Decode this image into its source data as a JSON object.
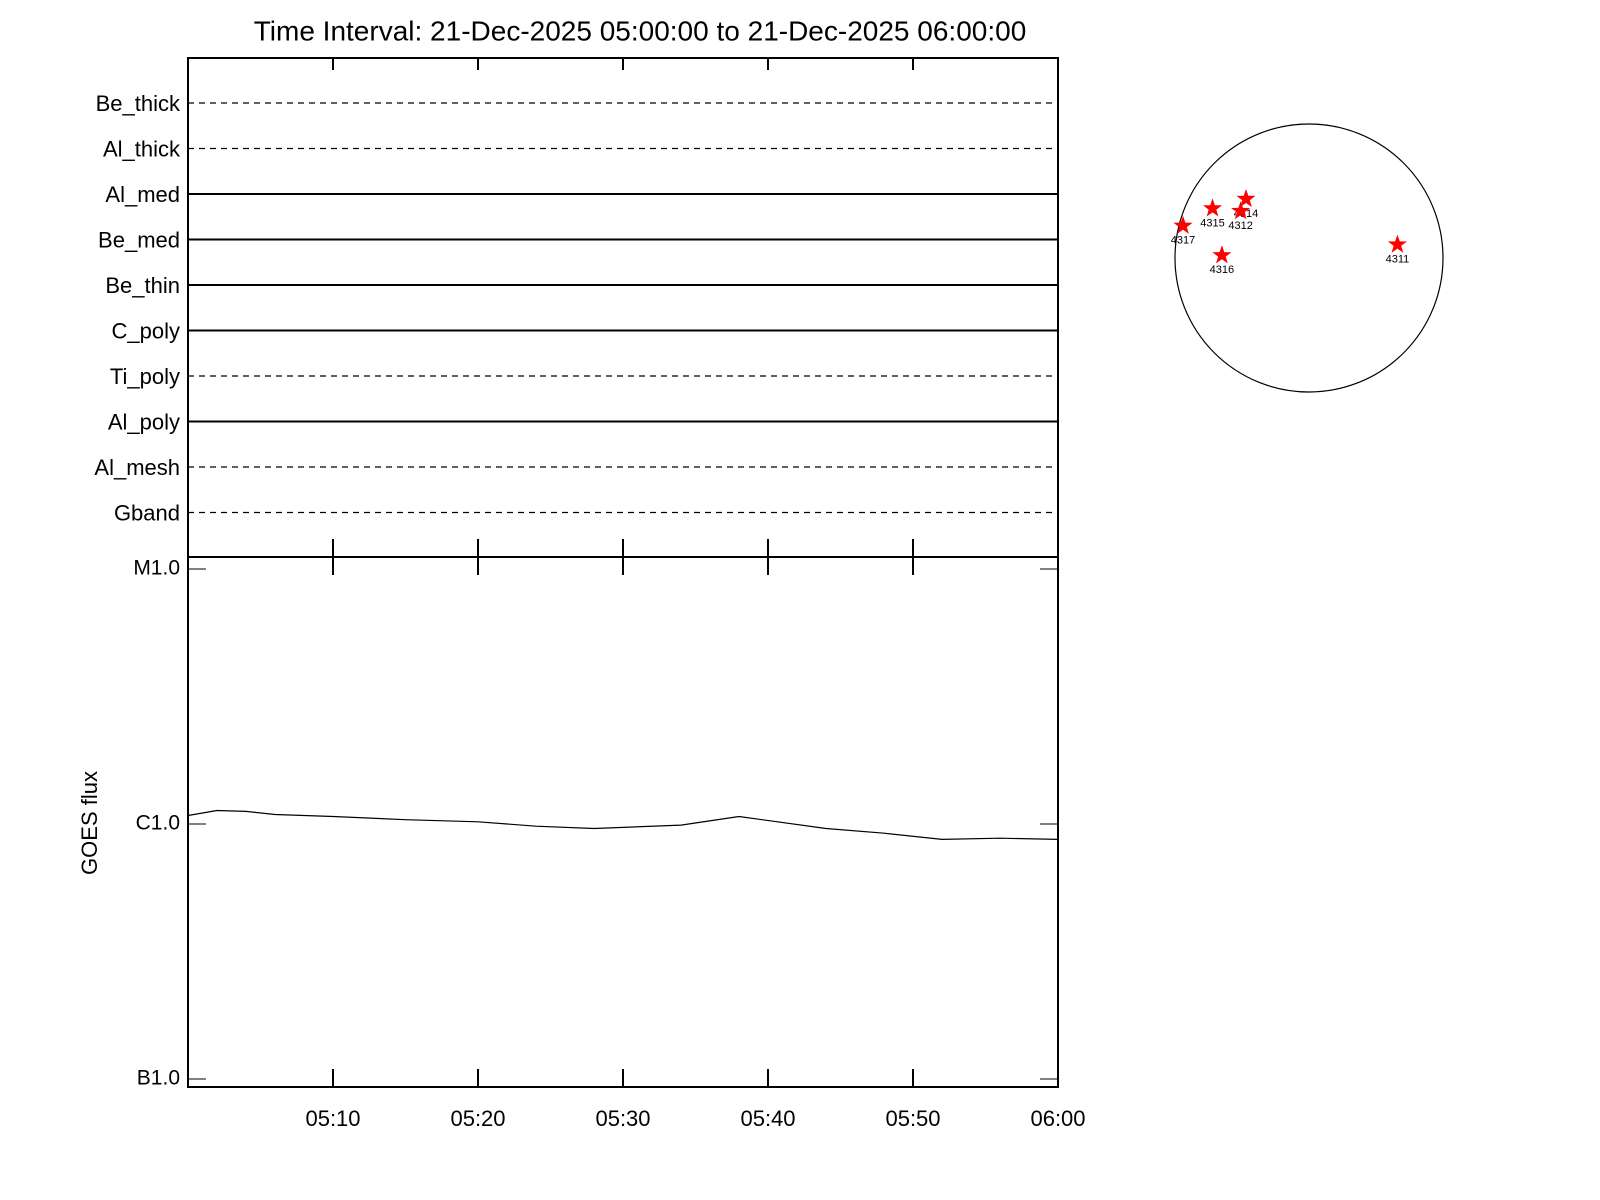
{
  "chart_data": [
    {
      "type": "timeline",
      "title": "Time Interval: 21-Dec-2025 05:00:00 to 21-Dec-2025 06:00:00",
      "categories": [
        "Be_thick",
        "Al_thick",
        "Al_med",
        "Be_med",
        "Be_thin",
        "C_poly",
        "Ti_poly",
        "Al_poly",
        "Al_mesh",
        "Gband"
      ],
      "line_styles": [
        "dashed",
        "dashed",
        "solid",
        "solid",
        "solid",
        "solid",
        "dashed",
        "solid",
        "dashed",
        "dashed"
      ]
    },
    {
      "type": "line",
      "ylabel": "GOES flux",
      "log_scale": true,
      "x": [
        "05:00",
        "05:02",
        "05:04",
        "05:06",
        "05:10",
        "05:15",
        "05:20",
        "05:24",
        "05:28",
        "05:34",
        "05:38",
        "05:44",
        "05:48",
        "05:52",
        "05:56",
        "06:00"
      ],
      "series": [
        {
          "name": "GOES",
          "color": "#000000",
          "values": [
            1.08e-06,
            1.13e-06,
            1.12e-06,
            1.09e-06,
            1.07e-06,
            1.04e-06,
            1.02e-06,
            9.8e-07,
            9.6e-07,
            9.9e-07,
            1.07e-06,
            9.6e-07,
            9.2e-07,
            8.7e-07,
            8.8e-07,
            8.7e-07
          ]
        }
      ],
      "xlim": [
        "05:00",
        "06:00"
      ],
      "xticks": [
        "05:10",
        "05:20",
        "05:30",
        "05:40",
        "05:50",
        "06:00"
      ],
      "ylim": [
        1e-07,
        1e-05
      ],
      "yticks": [
        {
          "value": 1e-05,
          "label": "M1.0"
        },
        {
          "value": 1e-06,
          "label": "C1.0"
        },
        {
          "value": 1e-07,
          "label": "B1.0"
        }
      ]
    },
    {
      "type": "scatter",
      "categories": [
        "4317",
        "4315",
        "4314",
        "4312",
        "4316",
        "4311"
      ],
      "x": [
        -0.94,
        -0.72,
        -0.47,
        -0.51,
        -0.65,
        0.66
      ],
      "y": [
        0.24,
        0.37,
        0.44,
        0.35,
        0.02,
        0.1
      ],
      "color": "#ff0000"
    }
  ]
}
